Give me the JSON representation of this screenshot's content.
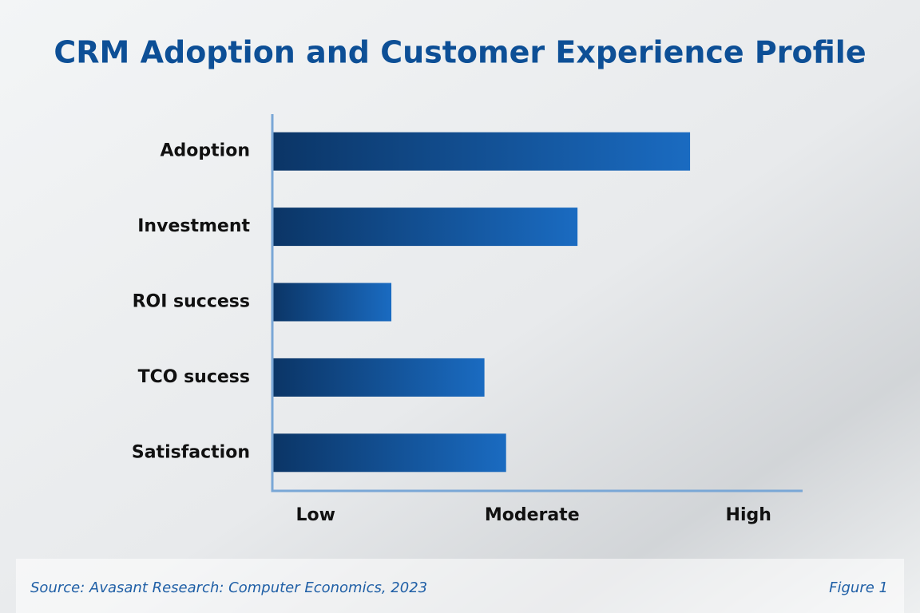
{
  "chart_data": {
    "type": "bar",
    "orientation": "horizontal",
    "title": "CRM Adoption and Customer Experience Profile",
    "categories": [
      "Adoption",
      "Investment",
      "ROI success",
      "TCO sucess",
      "Satisfaction"
    ],
    "values": [
      2.73,
      2.21,
      1.35,
      1.78,
      1.88
    ],
    "color": "#1a6bc1",
    "xlim": [
      0.8,
      3.25
    ],
    "xticks": [
      {
        "value": 1,
        "label": "Low"
      },
      {
        "value": 2,
        "label": "Moderate"
      },
      {
        "value": 3,
        "label": "High"
      }
    ],
    "grid": false,
    "source": "Source: Avasant Research: Computer Economics, 2023",
    "figure_label": "Figure 1"
  }
}
